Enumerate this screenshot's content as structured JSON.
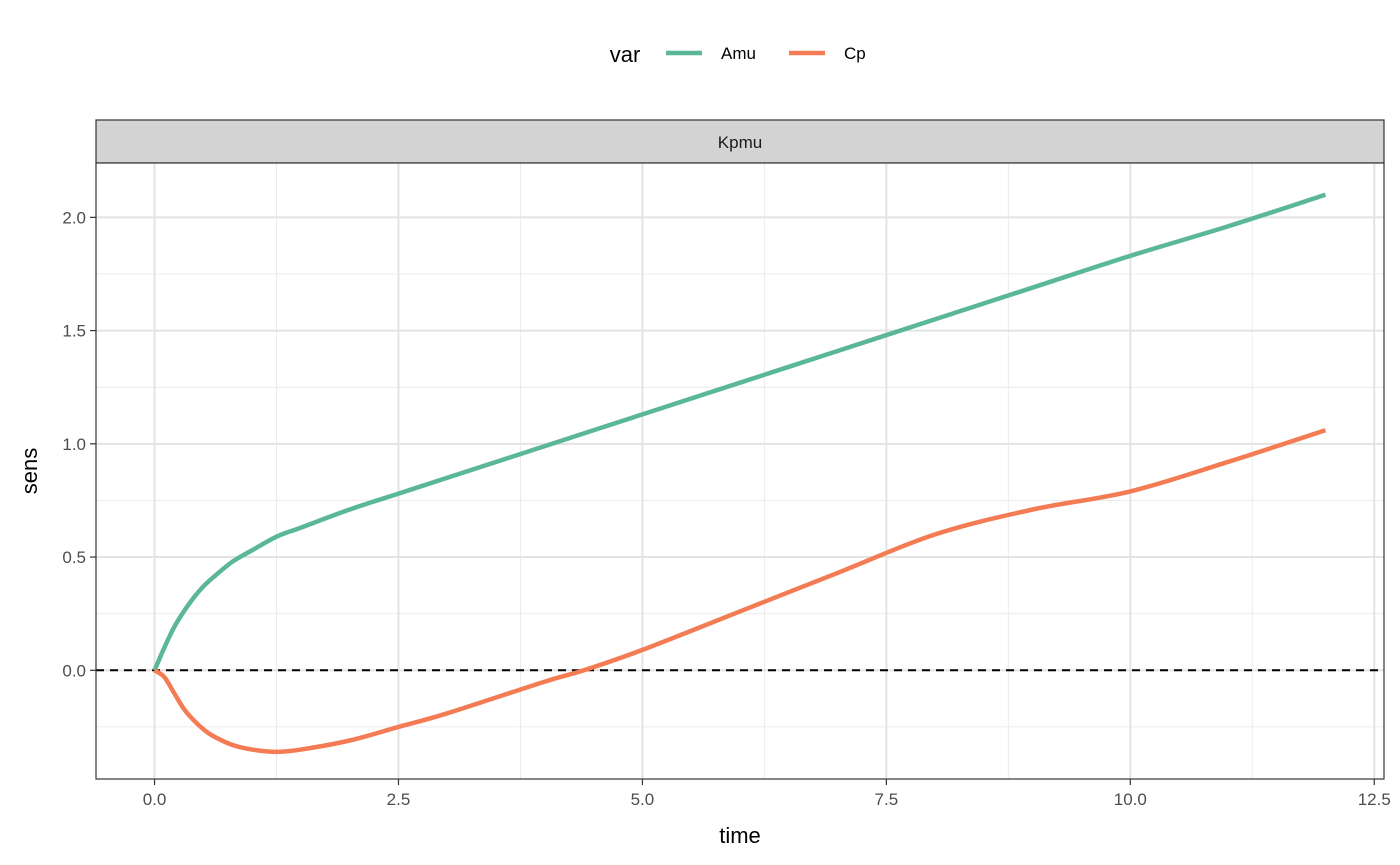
{
  "chart_data": {
    "type": "line",
    "facet": "Kpmu",
    "xlabel": "time",
    "ylabel": "sens",
    "xlim": [
      -0.6,
      12.6
    ],
    "ylim": [
      -0.48,
      2.24
    ],
    "x_ticks": [
      0.0,
      2.5,
      5.0,
      7.5,
      10.0,
      12.5
    ],
    "x_tick_labels": [
      "0.0",
      "2.5",
      "5.0",
      "7.5",
      "10.0",
      "12.5"
    ],
    "y_ticks": [
      0.0,
      0.5,
      1.0,
      1.5,
      2.0
    ],
    "y_tick_labels": [
      "0.0",
      "0.5",
      "1.0",
      "1.5",
      "2.0"
    ],
    "x_minor": [
      1.25,
      3.75,
      6.25,
      8.75,
      11.25
    ],
    "y_minor": [
      -0.25,
      0.25,
      0.75,
      1.25,
      1.75
    ],
    "reference_line": {
      "y": 0,
      "style": "dashed",
      "color": "#000000"
    },
    "grid": true,
    "legend": {
      "title": "var",
      "position": "top"
    },
    "series": [
      {
        "name": "Amu",
        "color": "#5bb897",
        "x": [
          0,
          0.1,
          0.2,
          0.3,
          0.4,
          0.5,
          0.6,
          0.8,
          1.0,
          1.25,
          1.5,
          2.0,
          2.5,
          3.0,
          4.0,
          5.0,
          6.0,
          7.0,
          8.0,
          9.0,
          10.0,
          11.0,
          12.0
        ],
        "y": [
          0.0,
          0.1,
          0.19,
          0.26,
          0.32,
          0.37,
          0.41,
          0.48,
          0.53,
          0.59,
          0.63,
          0.71,
          0.78,
          0.85,
          0.99,
          1.13,
          1.27,
          1.41,
          1.55,
          1.69,
          1.83,
          1.96,
          2.1
        ]
      },
      {
        "name": "Cp",
        "color": "#f47c55",
        "x": [
          0,
          0.1,
          0.2,
          0.3,
          0.4,
          0.5,
          0.6,
          0.8,
          1.0,
          1.25,
          1.5,
          2.0,
          2.5,
          3.0,
          4.0,
          4.4,
          5.0,
          6.0,
          7.0,
          8.0,
          9.0,
          10.0,
          11.0,
          12.0
        ],
        "y": [
          0.0,
          -0.03,
          -0.1,
          -0.17,
          -0.22,
          -0.26,
          -0.29,
          -0.33,
          -0.35,
          -0.36,
          -0.35,
          -0.31,
          -0.25,
          -0.19,
          -0.05,
          0.0,
          0.09,
          0.26,
          0.43,
          0.6,
          0.71,
          0.79,
          0.92,
          1.06
        ]
      }
    ]
  }
}
